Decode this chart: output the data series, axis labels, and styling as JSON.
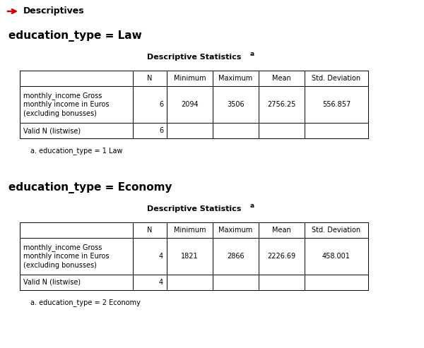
{
  "title": "Descriptives",
  "arrow_color": "#CC0000",
  "bg_color": "#FFFFFF",
  "section1_label": "education_type = Law",
  "section2_label": "education_type = Economy",
  "table_title": "Descriptive Statistics",
  "table_title_sup": "a",
  "col_headers": [
    "",
    "N",
    "Minimum",
    "Maximum",
    "Mean",
    "Std. Deviation"
  ],
  "row1_label": "monthly_income Gross\nmonthly income in Euros\n(excluding bonusses)",
  "row2_label": "Valid N (listwise)",
  "table1_data": [
    [
      "6",
      "2094",
      "3506",
      "2756.25",
      "556.857"
    ],
    [
      "6",
      "",
      "",
      "",
      ""
    ]
  ],
  "table2_data": [
    [
      "4",
      "1821",
      "2866",
      "2226.69",
      "458.001"
    ],
    [
      "4",
      "",
      "",
      "",
      ""
    ]
  ],
  "footnote1": "a. education_type = 1 Law",
  "footnote2": "a. education_type = 2 Economy",
  "font_size_title": 9,
  "font_size_section": 11,
  "font_size_table_title": 8,
  "font_size_cell": 7,
  "font_size_footnote": 7
}
